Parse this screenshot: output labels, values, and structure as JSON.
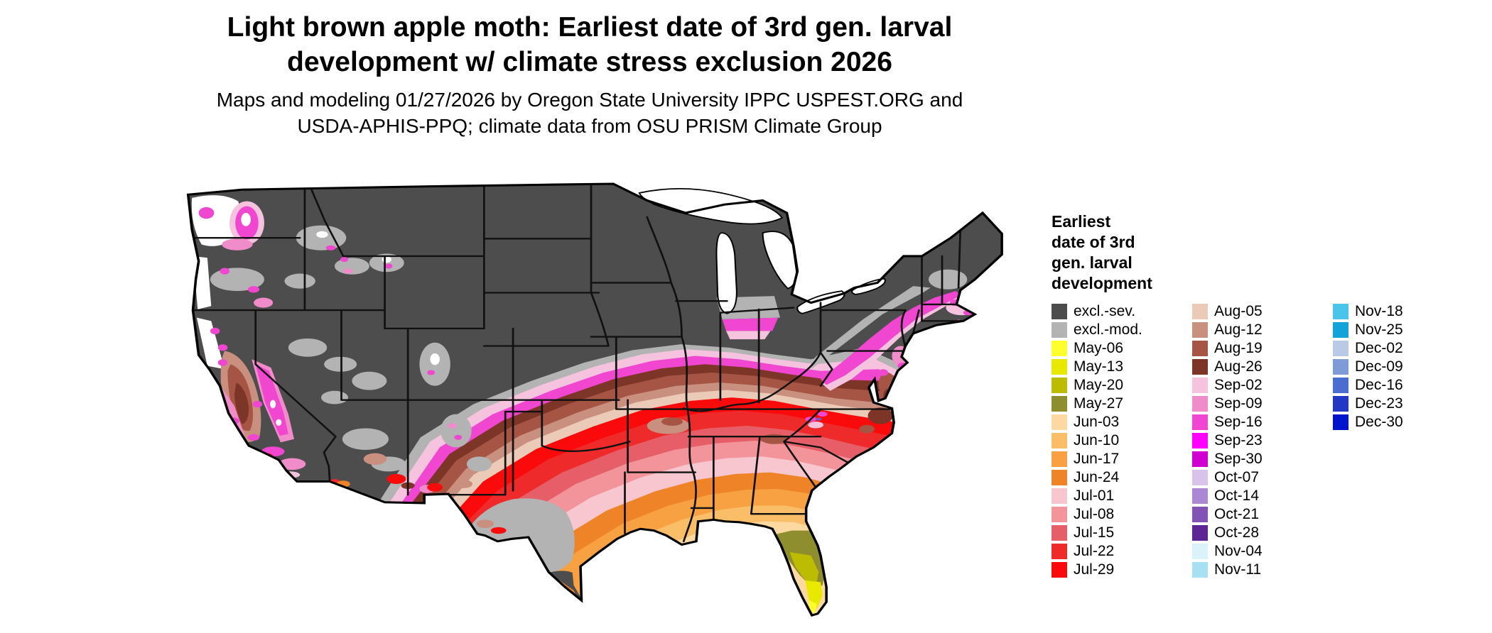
{
  "title": {
    "line1": "Light brown apple moth: Earliest date of 3rd gen. larval",
    "line2": "development w/ climate stress exclusion 2026"
  },
  "subtitle": {
    "line1": "Maps and modeling 01/27/2026 by Oregon State University IPPC USPEST.ORG and",
    "line2": "USDA-APHIS-PPQ; climate data from OSU PRISM Climate Group"
  },
  "legend": {
    "title_lines": [
      "Earliest",
      "date of 3rd",
      "gen. larval",
      "development"
    ],
    "columns": [
      {
        "items": [
          {
            "label": "excl.-sev.",
            "color": "#4d4d4d"
          },
          {
            "label": "excl.-mod.",
            "color": "#b3b3b3"
          },
          {
            "label": "May-06",
            "color": "#ffff2e"
          },
          {
            "label": "May-13",
            "color": "#e9e900"
          },
          {
            "label": "May-20",
            "color": "#bcbc00"
          },
          {
            "label": "May-27",
            "color": "#8e8e2e"
          },
          {
            "label": "Jun-03",
            "color": "#fcd9a0"
          },
          {
            "label": "Jun-10",
            "color": "#fabd68"
          },
          {
            "label": "Jun-17",
            "color": "#f7a142"
          },
          {
            "label": "Jun-24",
            "color": "#ef8327"
          },
          {
            "label": "Jul-01",
            "color": "#f8c6ce"
          },
          {
            "label": "Jul-08",
            "color": "#f2949a"
          },
          {
            "label": "Jul-15",
            "color": "#e65f68"
          },
          {
            "label": "Jul-22",
            "color": "#ee2a2a"
          },
          {
            "label": "Jul-29",
            "color": "#fa0a0a"
          }
        ]
      },
      {
        "items": [
          {
            "label": "Aug-05",
            "color": "#eccab8"
          },
          {
            "label": "Aug-12",
            "color": "#c98f7f"
          },
          {
            "label": "Aug-19",
            "color": "#a65544"
          },
          {
            "label": "Aug-26",
            "color": "#7d3527"
          },
          {
            "label": "Sep-02",
            "color": "#f6c3de"
          },
          {
            "label": "Sep-09",
            "color": "#f18cca"
          },
          {
            "label": "Sep-16",
            "color": "#f046d0"
          },
          {
            "label": "Sep-23",
            "color": "#ff00ff"
          },
          {
            "label": "Sep-30",
            "color": "#d000d0"
          },
          {
            "label": "Oct-07",
            "color": "#d9c3ea"
          },
          {
            "label": "Oct-14",
            "color": "#ac87d3"
          },
          {
            "label": "Oct-21",
            "color": "#8352b5"
          },
          {
            "label": "Oct-28",
            "color": "#5d2596"
          },
          {
            "label": "Nov-04",
            "color": "#daf3fa"
          },
          {
            "label": "Nov-11",
            "color": "#a7e0f2"
          }
        ]
      },
      {
        "items": [
          {
            "label": "Nov-18",
            "color": "#4ac4ea"
          },
          {
            "label": "Nov-25",
            "color": "#14a3d8"
          },
          {
            "label": "Dec-02",
            "color": "#bac9e5"
          },
          {
            "label": "Dec-09",
            "color": "#7e9bd7"
          },
          {
            "label": "Dec-16",
            "color": "#4a6ed0"
          },
          {
            "label": "Dec-23",
            "color": "#2337c5"
          },
          {
            "label": "Dec-30",
            "color": "#0014cc"
          }
        ]
      }
    ]
  }
}
